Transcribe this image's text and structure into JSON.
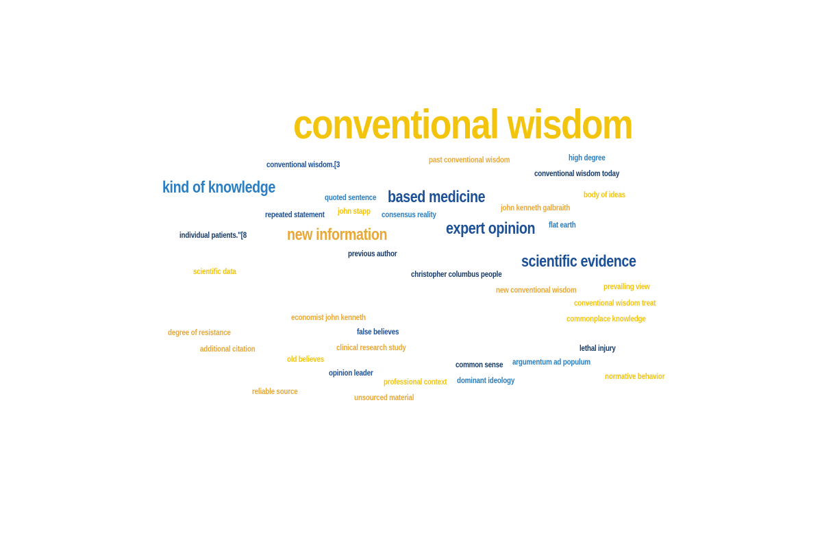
{
  "word_cloud": {
    "colors": {
      "yellow": "#f2c40e",
      "orange": "#e8a838",
      "blue": "#2a7ec1",
      "dark_blue": "#1b4f96",
      "navy": "#153a69"
    },
    "words": [
      {
        "id": "w01",
        "text": "conventional wisdom",
        "color": "yellow",
        "rank": "primary"
      },
      {
        "id": "w02",
        "text": "kind of knowledge",
        "color": "blue",
        "rank": "secondary"
      },
      {
        "id": "w03",
        "text": "based medicine",
        "color": "dark_blue",
        "rank": "secondary"
      },
      {
        "id": "w04",
        "text": "expert opinion",
        "color": "dark_blue",
        "rank": "secondary"
      },
      {
        "id": "w05",
        "text": "new information",
        "color": "orange",
        "rank": "secondary"
      },
      {
        "id": "w06",
        "text": "scientific evidence",
        "color": "dark_blue",
        "rank": "secondary"
      },
      {
        "id": "w07",
        "text": "conventional wisdom.[3",
        "color": "dark_blue",
        "rank": "minor"
      },
      {
        "id": "w08",
        "text": "past conventional wisdom",
        "color": "orange",
        "rank": "minor"
      },
      {
        "id": "w09",
        "text": "high degree",
        "color": "blue",
        "rank": "minor"
      },
      {
        "id": "w10",
        "text": "conventional wisdom today",
        "color": "navy",
        "rank": "minor"
      },
      {
        "id": "w11",
        "text": "body of ideas",
        "color": "yellow",
        "rank": "minor"
      },
      {
        "id": "w12",
        "text": "quoted sentence",
        "color": "blue",
        "rank": "minor"
      },
      {
        "id": "w13",
        "text": "john kenneth galbraith",
        "color": "orange",
        "rank": "minor"
      },
      {
        "id": "w14",
        "text": "john stapp",
        "color": "yellow",
        "rank": "minor"
      },
      {
        "id": "w15",
        "text": "repeated statement",
        "color": "dark_blue",
        "rank": "minor"
      },
      {
        "id": "w16",
        "text": "consensus reality",
        "color": "blue",
        "rank": "minor"
      },
      {
        "id": "w17",
        "text": "flat earth",
        "color": "blue",
        "rank": "minor"
      },
      {
        "id": "w18",
        "text": "individual patients.\"[8",
        "color": "navy",
        "rank": "minor"
      },
      {
        "id": "w19",
        "text": "previous author",
        "color": "navy",
        "rank": "minor"
      },
      {
        "id": "w20",
        "text": "scientific data",
        "color": "yellow",
        "rank": "minor"
      },
      {
        "id": "w21",
        "text": "christopher columbus people",
        "color": "navy",
        "rank": "minor"
      },
      {
        "id": "w22",
        "text": "prevailing view",
        "color": "yellow",
        "rank": "minor"
      },
      {
        "id": "w23",
        "text": "new conventional wisdom",
        "color": "orange",
        "rank": "minor"
      },
      {
        "id": "w24",
        "text": "conventional wisdom treat",
        "color": "yellow",
        "rank": "minor"
      },
      {
        "id": "w25",
        "text": "economist john kenneth",
        "color": "orange",
        "rank": "minor"
      },
      {
        "id": "w26",
        "text": "commonplace knowledge",
        "color": "yellow",
        "rank": "minor"
      },
      {
        "id": "w27",
        "text": "degree of resistance",
        "color": "orange",
        "rank": "minor"
      },
      {
        "id": "w28",
        "text": "false believes",
        "color": "dark_blue",
        "rank": "minor"
      },
      {
        "id": "w29",
        "text": "clinical research study",
        "color": "orange",
        "rank": "minor"
      },
      {
        "id": "w30",
        "text": "additional citation",
        "color": "orange",
        "rank": "minor"
      },
      {
        "id": "w31",
        "text": "lethal injury",
        "color": "navy",
        "rank": "minor"
      },
      {
        "id": "w32",
        "text": "old believes",
        "color": "yellow",
        "rank": "minor"
      },
      {
        "id": "w33",
        "text": "argumentum ad populum",
        "color": "blue",
        "rank": "minor"
      },
      {
        "id": "w34",
        "text": "common sense",
        "color": "navy",
        "rank": "minor"
      },
      {
        "id": "w35",
        "text": "opinion leader",
        "color": "dark_blue",
        "rank": "minor"
      },
      {
        "id": "w36",
        "text": "normative behavior",
        "color": "yellow",
        "rank": "minor"
      },
      {
        "id": "w37",
        "text": "dominant ideology",
        "color": "blue",
        "rank": "minor"
      },
      {
        "id": "w38",
        "text": "professional context",
        "color": "yellow",
        "rank": "minor"
      },
      {
        "id": "w39",
        "text": "reliable source",
        "color": "orange",
        "rank": "minor"
      },
      {
        "id": "w40",
        "text": "unsourced material",
        "color": "orange",
        "rank": "minor"
      }
    ]
  }
}
